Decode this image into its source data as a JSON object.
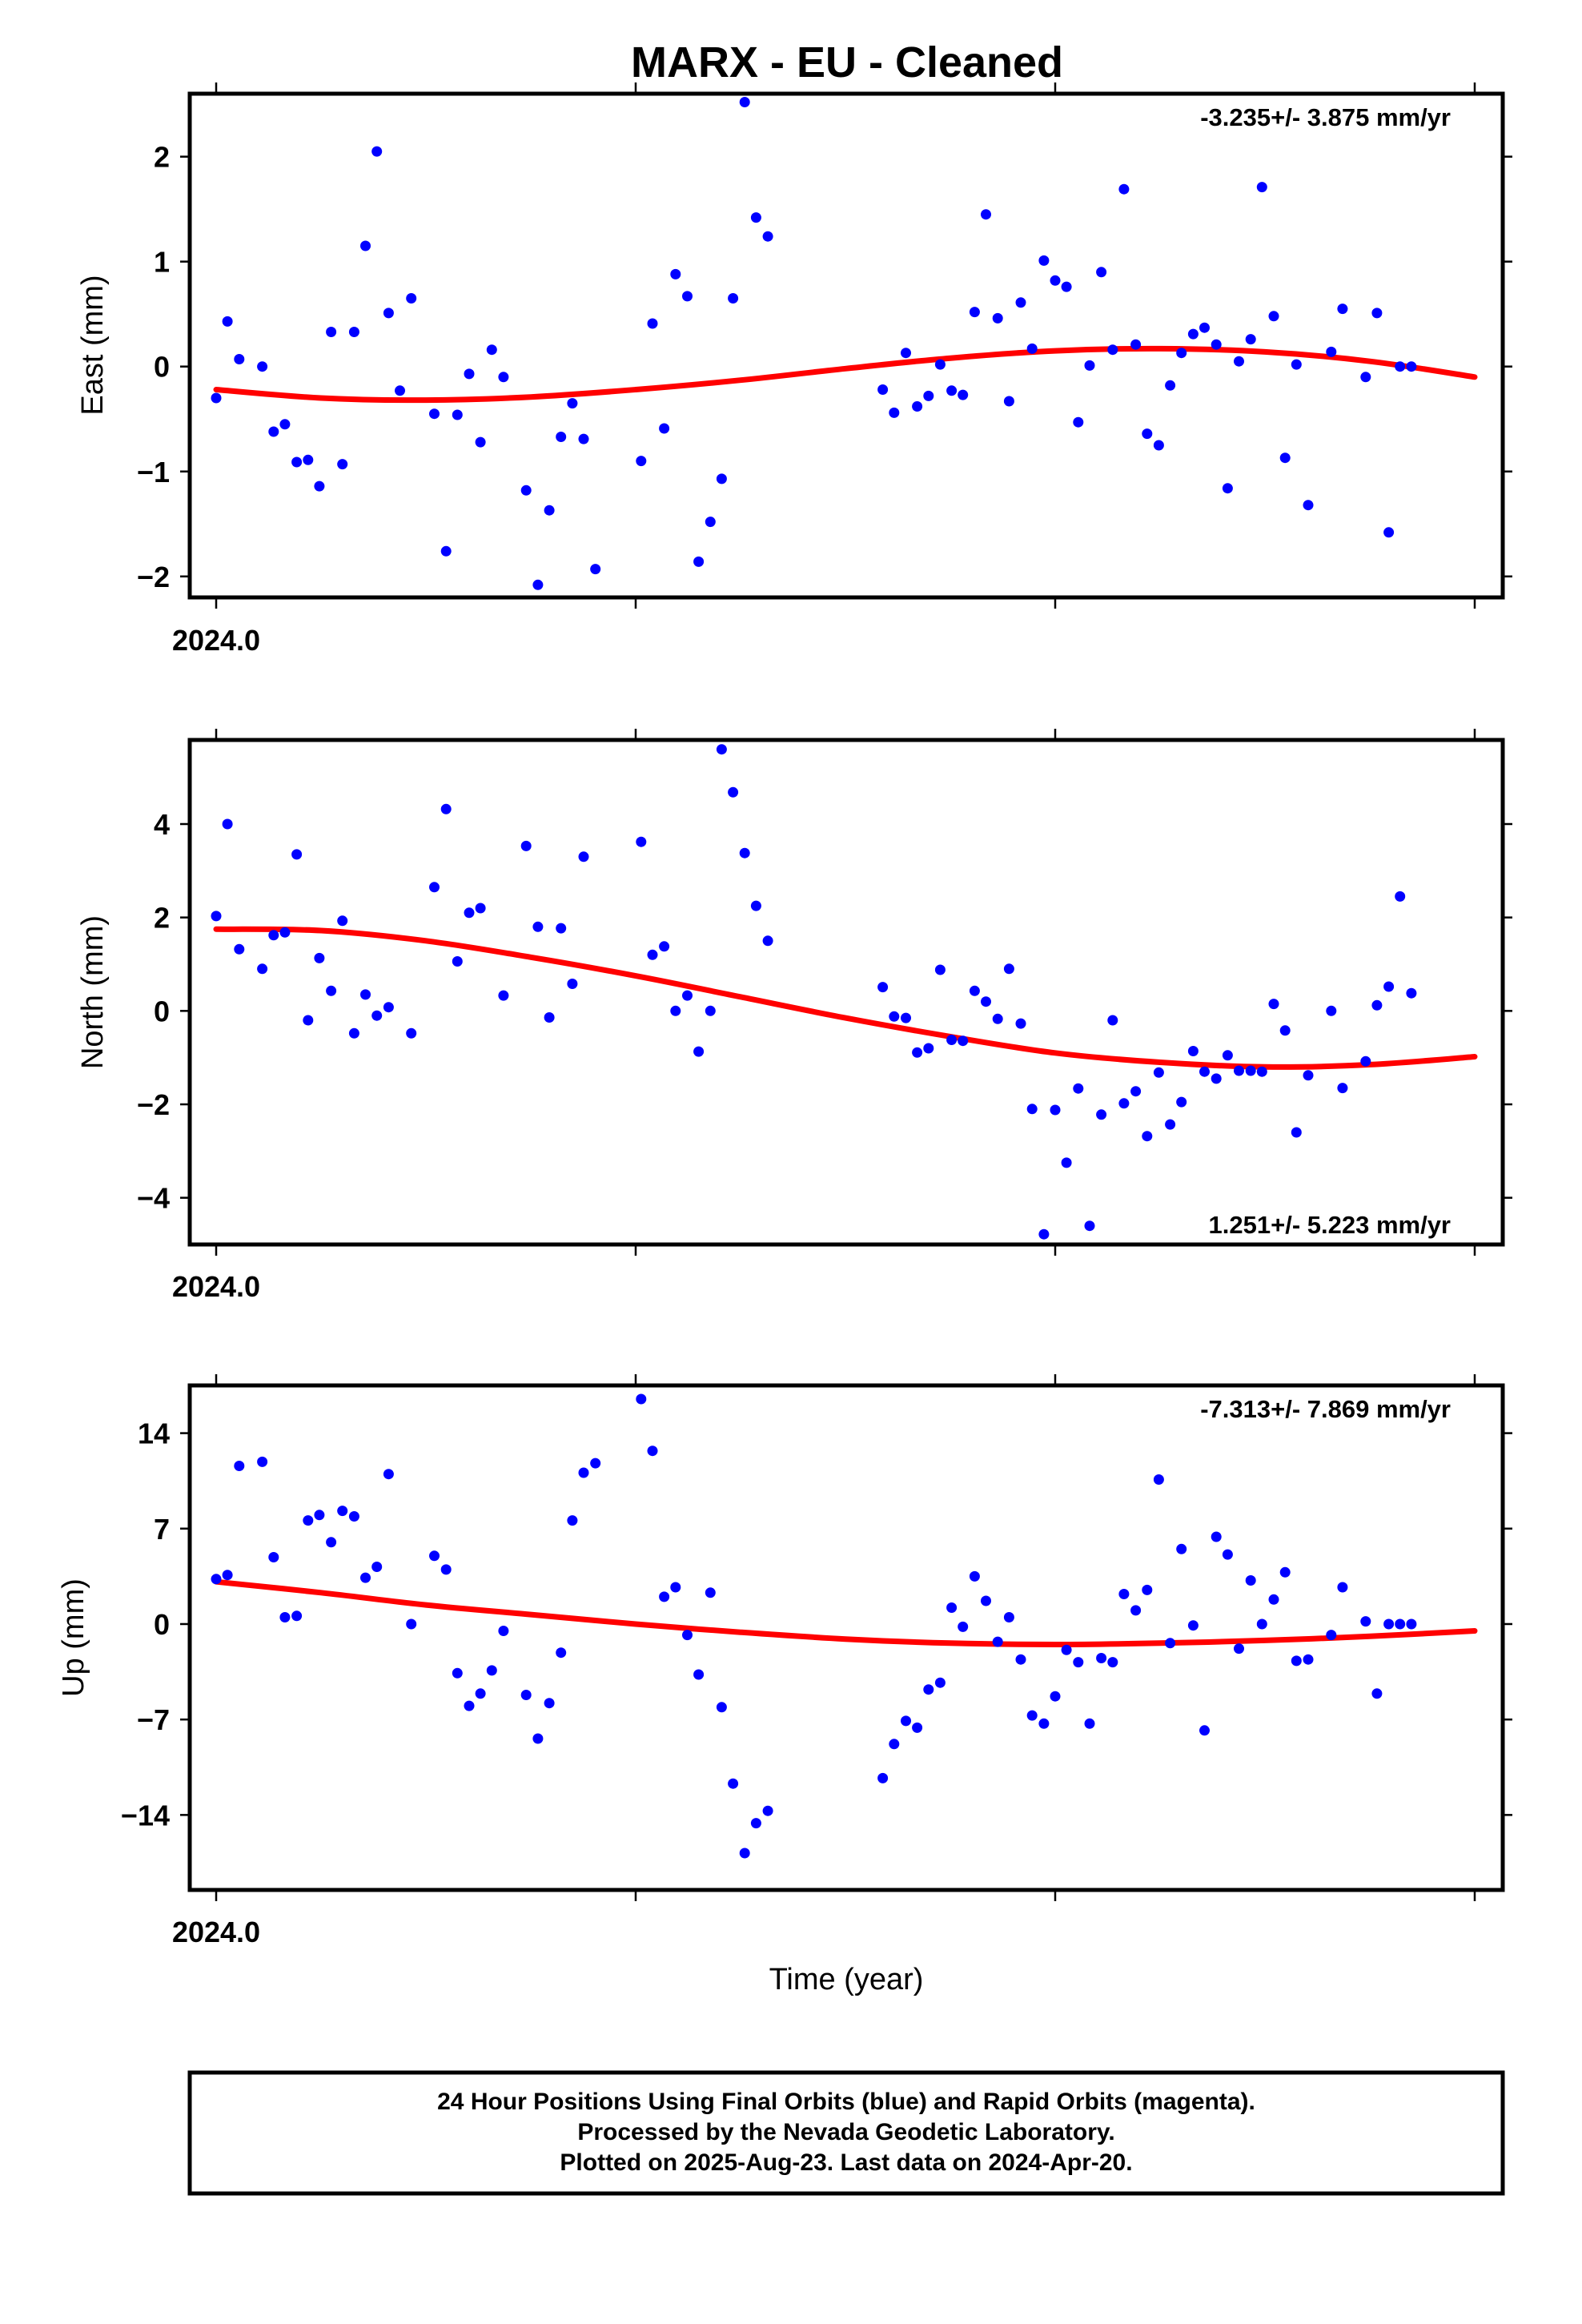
{
  "title": "MARX  - EU - Cleaned",
  "x_axis": {
    "label": "Time (year)",
    "tick_label": "2024.0"
  },
  "footer": {
    "line1": "24 Hour Positions Using Final Orbits (blue) and Rapid Orbits (magenta).",
    "line2": "Processed by the Nevada Geodetic Laboratory.",
    "line3": "Plotted on 2025-Aug-23. Last data on 2024-Apr-20."
  },
  "colors": {
    "final_orbits": "#0000ff",
    "fit_curve": "#ff0000",
    "frame": "#000000"
  },
  "chart_data": [
    {
      "type": "scatter",
      "ylabel": "East (mm)",
      "rate_text": "-3.235+/- 3.875 mm/yr",
      "rate_position": "top-right",
      "xlim": [
        2024.0,
        2024.308
      ],
      "ylim": [
        -2.2,
        2.6
      ],
      "yticks": [
        -2,
        -1,
        0,
        1,
        2
      ],
      "ytick_labels": [
        "−2",
        "−1",
        "0",
        "1",
        "2"
      ],
      "x_ticks": [
        2024.0,
        2024.1,
        2024.2,
        2024.3
      ],
      "series": [
        {
          "kind": "points",
          "x": [
            2024.0,
            2024.0027,
            2024.0055,
            2024.011,
            2024.0137,
            2024.0164,
            2024.0192,
            2024.0219,
            2024.0246,
            2024.0274,
            2024.0301,
            2024.0329,
            2024.0356,
            2024.0383,
            2024.0411,
            2024.0438,
            2024.0465,
            2024.052,
            2024.0548,
            2024.0575,
            2024.0603,
            2024.063,
            2024.0657,
            2024.0685,
            2024.0739,
            2024.0767,
            2024.0794,
            2024.0822,
            2024.0849,
            2024.0876,
            2024.0904,
            2024.1013,
            2024.104,
            2024.1068,
            2024.1095,
            2024.1123,
            2024.115,
            2024.1178,
            2024.1205,
            2024.1232,
            2024.126,
            2024.1287,
            2024.1315,
            2024.1589,
            2024.1616,
            2024.1644,
            2024.1671,
            2024.1698,
            2024.1726,
            2024.1753,
            2024.178,
            2024.1808,
            2024.1835,
            2024.1863,
            2024.189,
            2024.1918,
            2024.1945,
            2024.1973,
            2024.2,
            2024.2027,
            2024.2055,
            2024.2082,
            2024.211,
            2024.2137,
            2024.2164,
            2024.2192,
            2024.2219,
            2024.2247,
            2024.2274,
            2024.2301,
            2024.2329,
            2024.2356,
            2024.2384,
            2024.2411,
            2024.2438,
            2024.2466,
            2024.2493,
            2024.2521,
            2024.2548,
            2024.2575,
            2024.2603,
            2024.2658,
            2024.2685,
            2024.274,
            2024.2767,
            2024.2795,
            2024.2822,
            2024.2849
          ],
          "y": [
            -0.3,
            0.43,
            0.07,
            0.0,
            -0.62,
            -0.55,
            -0.91,
            -0.89,
            -1.14,
            0.33,
            -0.93,
            0.33,
            1.15,
            2.05,
            0.51,
            -0.23,
            0.65,
            -0.45,
            -1.76,
            -0.46,
            -0.07,
            -0.72,
            0.16,
            -0.1,
            -1.18,
            -2.08,
            -1.37,
            -0.67,
            -0.35,
            -0.69,
            -1.93,
            -0.9,
            0.41,
            -0.59,
            0.88,
            0.67,
            -1.86,
            -1.48,
            -1.07,
            0.65,
            2.52,
            1.42,
            1.24,
            -0.22,
            -0.44,
            0.13,
            -0.38,
            -0.28,
            0.02,
            -0.23,
            -0.27,
            0.52,
            1.45,
            0.46,
            -0.33,
            0.61,
            0.17,
            1.01,
            0.82,
            0.76,
            -0.53,
            0.01,
            0.9,
            0.16,
            1.69,
            0.21,
            -0.64,
            -0.75,
            -0.18,
            0.13,
            0.31,
            0.37,
            0.21,
            -1.16,
            0.05,
            0.26,
            1.71,
            0.48,
            -0.87,
            0.02,
            -1.32,
            0.14,
            0.55,
            -0.1,
            0.51,
            -1.58,
            0.0,
            0.0
          ]
        },
        {
          "kind": "fit",
          "x": [
            2024.0,
            2024.025,
            2024.05,
            2024.075,
            2024.1,
            2024.125,
            2024.15,
            2024.175,
            2024.2,
            2024.225,
            2024.25,
            2024.275,
            2024.3
          ],
          "y": [
            -0.22,
            -0.3,
            -0.32,
            -0.29,
            -0.22,
            -0.13,
            -0.02,
            0.08,
            0.15,
            0.17,
            0.14,
            0.05,
            -0.1
          ]
        }
      ]
    },
    {
      "type": "scatter",
      "ylabel": "North (mm)",
      "rate_text": "1.251+/- 5.223 mm/yr",
      "rate_position": "bottom-right",
      "xlim": [
        2024.0,
        2024.308
      ],
      "ylim": [
        -5.0,
        5.8
      ],
      "yticks": [
        -4,
        -2,
        0,
        2,
        4
      ],
      "ytick_labels": [
        "−4",
        "−2",
        "0",
        "2",
        "4"
      ],
      "x_ticks": [
        2024.0,
        2024.1,
        2024.2,
        2024.3
      ],
      "series": [
        {
          "kind": "points",
          "x": [
            2024.0,
            2024.0027,
            2024.0055,
            2024.011,
            2024.0137,
            2024.0164,
            2024.0192,
            2024.0219,
            2024.0246,
            2024.0274,
            2024.0301,
            2024.0329,
            2024.0356,
            2024.0383,
            2024.0411,
            2024.0465,
            2024.052,
            2024.0548,
            2024.0575,
            2024.0603,
            2024.063,
            2024.0685,
            2024.0739,
            2024.0767,
            2024.0794,
            2024.0822,
            2024.0849,
            2024.0876,
            2024.1013,
            2024.104,
            2024.1068,
            2024.1095,
            2024.1123,
            2024.115,
            2024.1178,
            2024.1205,
            2024.1232,
            2024.126,
            2024.1287,
            2024.1315,
            2024.1589,
            2024.1616,
            2024.1644,
            2024.1671,
            2024.1698,
            2024.1726,
            2024.1753,
            2024.178,
            2024.1808,
            2024.1835,
            2024.1863,
            2024.189,
            2024.1918,
            2024.1945,
            2024.1973,
            2024.2,
            2024.2027,
            2024.2055,
            2024.2082,
            2024.211,
            2024.2137,
            2024.2164,
            2024.2192,
            2024.2219,
            2024.2247,
            2024.2274,
            2024.2301,
            2024.2329,
            2024.2356,
            2024.2384,
            2024.2411,
            2024.2438,
            2024.2466,
            2024.2493,
            2024.2521,
            2024.2548,
            2024.2575,
            2024.2603,
            2024.2658,
            2024.2685,
            2024.274,
            2024.2767,
            2024.2795,
            2024.2822,
            2024.2849
          ],
          "y": [
            2.03,
            4.0,
            1.32,
            0.9,
            1.62,
            1.68,
            3.35,
            -0.2,
            1.13,
            0.43,
            1.93,
            -0.48,
            0.35,
            -0.1,
            0.08,
            -0.48,
            2.65,
            4.32,
            1.06,
            2.1,
            2.2,
            0.33,
            3.53,
            1.8,
            -0.14,
            1.77,
            0.58,
            3.3,
            3.62,
            1.2,
            1.38,
            0.0,
            0.33,
            -0.87,
            0.0,
            5.6,
            4.68,
            3.38,
            2.25,
            1.5,
            0.51,
            -0.12,
            -0.15,
            -0.89,
            -0.8,
            0.88,
            -0.62,
            -0.64,
            0.43,
            0.2,
            -0.17,
            0.9,
            -0.27,
            -2.1,
            -4.78,
            -2.12,
            -3.25,
            -1.66,
            -4.6,
            -2.22,
            -0.2,
            -1.98,
            -1.72,
            -2.68,
            -1.32,
            -2.43,
            -1.95,
            -0.86,
            -1.3,
            -1.45,
            -0.95,
            -1.28,
            -1.28,
            -1.3,
            0.15,
            -0.42,
            -2.6,
            -1.38,
            0.0,
            -1.65,
            -1.08,
            0.12,
            0.52,
            2.45,
            0.38
          ]
        },
        {
          "kind": "fit",
          "x": [
            2024.0,
            2024.025,
            2024.05,
            2024.075,
            2024.1,
            2024.125,
            2024.15,
            2024.175,
            2024.2,
            2024.225,
            2024.25,
            2024.275,
            2024.3
          ],
          "y": [
            1.75,
            1.72,
            1.5,
            1.15,
            0.75,
            0.3,
            -0.15,
            -0.55,
            -0.9,
            -1.1,
            -1.2,
            -1.15,
            -0.98
          ]
        }
      ]
    },
    {
      "type": "scatter",
      "ylabel": "Up (mm)",
      "rate_text": "-7.313+/- 7.869 mm/yr",
      "rate_position": "top-right",
      "xlim": [
        2024.0,
        2024.308
      ],
      "ylim": [
        -19.5,
        17.5
      ],
      "yticks": [
        -14,
        -7,
        0,
        7,
        14
      ],
      "ytick_labels": [
        "−14",
        "−7",
        "0",
        "7",
        "14"
      ],
      "x_ticks": [
        2024.0,
        2024.1,
        2024.2,
        2024.3
      ],
      "series": [
        {
          "kind": "points",
          "x": [
            2024.0,
            2024.0027,
            2024.0055,
            2024.011,
            2024.0137,
            2024.0164,
            2024.0192,
            2024.0219,
            2024.0246,
            2024.0274,
            2024.0301,
            2024.0329,
            2024.0356,
            2024.0383,
            2024.0411,
            2024.0465,
            2024.052,
            2024.0548,
            2024.0575,
            2024.0603,
            2024.063,
            2024.0657,
            2024.0685,
            2024.0739,
            2024.0767,
            2024.0794,
            2024.0822,
            2024.0849,
            2024.0876,
            2024.0904,
            2024.1013,
            2024.104,
            2024.1068,
            2024.1095,
            2024.1123,
            2024.115,
            2024.1178,
            2024.1205,
            2024.1232,
            2024.126,
            2024.1287,
            2024.1315,
            2024.1589,
            2024.1616,
            2024.1644,
            2024.1671,
            2024.1698,
            2024.1726,
            2024.1753,
            2024.178,
            2024.1808,
            2024.1835,
            2024.1863,
            2024.189,
            2024.1918,
            2024.1945,
            2024.1973,
            2024.2,
            2024.2027,
            2024.2055,
            2024.2082,
            2024.211,
            2024.2137,
            2024.2164,
            2024.2192,
            2024.2219,
            2024.2247,
            2024.2274,
            2024.2301,
            2024.2329,
            2024.2356,
            2024.2384,
            2024.2411,
            2024.2438,
            2024.2466,
            2024.2493,
            2024.2521,
            2024.2548,
            2024.2575,
            2024.2603,
            2024.2658,
            2024.2685,
            2024.274,
            2024.2767,
            2024.2795,
            2024.2822,
            2024.2849
          ],
          "y": [
            3.3,
            3.6,
            11.6,
            11.9,
            4.9,
            0.5,
            0.6,
            7.6,
            8.0,
            6.0,
            8.3,
            7.9,
            3.4,
            4.2,
            11.0,
            0.0,
            5.0,
            4.0,
            -3.6,
            -6.0,
            -5.1,
            -3.4,
            -0.5,
            -5.2,
            -8.4,
            -5.8,
            -2.1,
            7.6,
            11.1,
            11.8,
            16.5,
            12.7,
            2.0,
            2.7,
            -0.8,
            -3.7,
            2.3,
            -6.1,
            -11.7,
            -16.8,
            -14.6,
            -13.7,
            -11.3,
            -8.8,
            -7.1,
            -7.6,
            -4.8,
            -4.3,
            1.2,
            -0.2,
            3.5,
            1.7,
            -1.3,
            0.5,
            -2.6,
            -6.7,
            -7.3,
            -5.3,
            -1.9,
            -2.8,
            -7.3,
            -2.5,
            -2.8,
            2.2,
            1.0,
            2.5,
            10.6,
            -1.4,
            5.5,
            -0.1,
            -7.8,
            6.4,
            5.1,
            -1.8,
            3.2,
            0.0,
            1.8,
            3.8,
            -2.7,
            -2.6,
            -0.8,
            2.7,
            0.2,
            -5.1,
            0.0,
            0.0,
            0.0
          ]
        },
        {
          "kind": "fit",
          "x": [
            2024.0,
            2024.025,
            2024.05,
            2024.075,
            2024.1,
            2024.125,
            2024.15,
            2024.175,
            2024.2,
            2024.225,
            2024.25,
            2024.275,
            2024.3
          ],
          "y": [
            3.1,
            2.3,
            1.4,
            0.7,
            0.0,
            -0.6,
            -1.1,
            -1.4,
            -1.5,
            -1.4,
            -1.2,
            -0.9,
            -0.5
          ]
        }
      ]
    }
  ]
}
